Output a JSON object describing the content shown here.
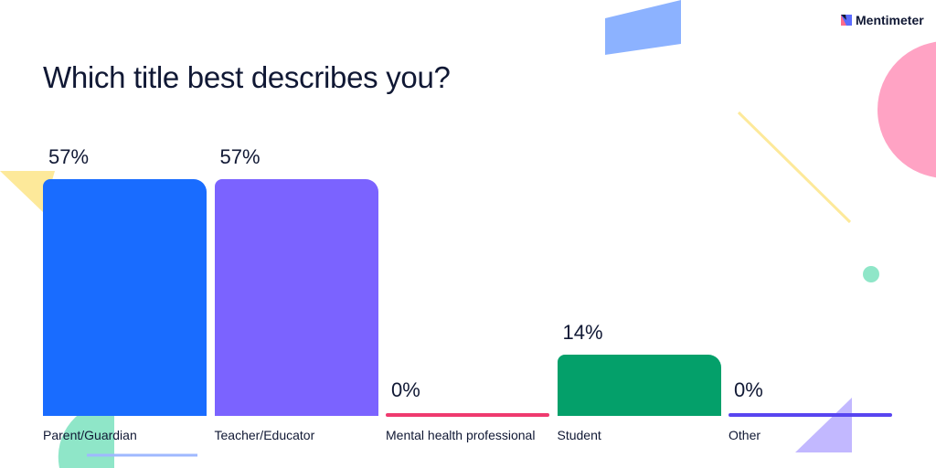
{
  "brand": "Mentimeter",
  "chart_data": {
    "type": "bar",
    "title": "Which title best describes you?",
    "categories": [
      "Parent/Guardian",
      "Teacher/Educator",
      "Mental health professional",
      "Student",
      "Other"
    ],
    "values": [
      57,
      57,
      0,
      14,
      0
    ],
    "labels": [
      "57%",
      "57%",
      "0%",
      "14%",
      "0%"
    ],
    "colors": [
      "#196cff",
      "#7b63ff",
      "#ef3a6f",
      "#04a06a",
      "#5845f0"
    ],
    "ylim": [
      0,
      57
    ],
    "grid": false
  }
}
